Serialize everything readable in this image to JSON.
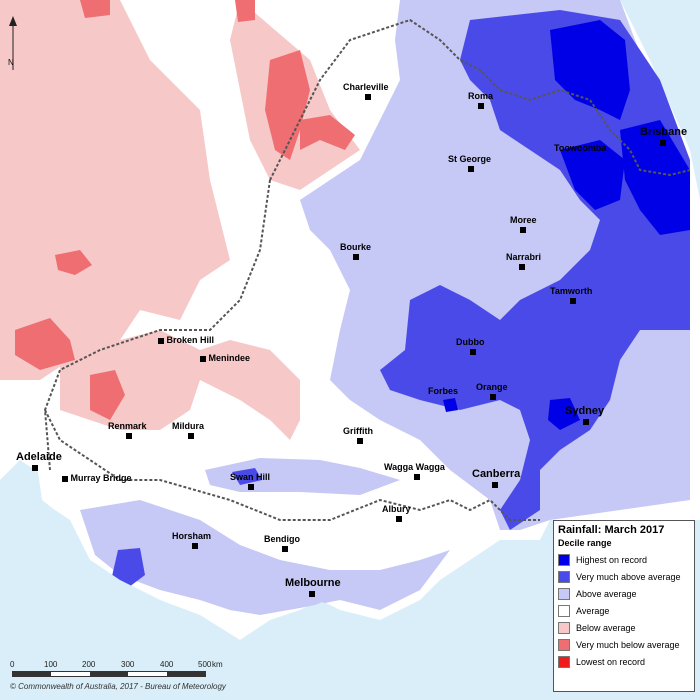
{
  "title": "Rainfall: March 2017",
  "subtitle": "Decile range",
  "legend": [
    {
      "label": "Highest on record",
      "color": "#0000e6"
    },
    {
      "label": "Very much above average",
      "color": "#4a4ae8"
    },
    {
      "label": "Above average",
      "color": "#c6c8f5"
    },
    {
      "label": "Average",
      "color": "#ffffff"
    },
    {
      "label": "Below average",
      "color": "#f6c8c8"
    },
    {
      "label": "Very much below average",
      "color": "#ee6e72"
    },
    {
      "label": "Lowest on record",
      "color": "#ee1c1c"
    }
  ],
  "cities": {
    "charleville": "Charleville",
    "roma": "Roma",
    "st_george": "St George",
    "toowoomba": "Toowoomba",
    "brisbane": "Brisbane",
    "moree": "Moree",
    "bourke": "Bourke",
    "narrabri": "Narrabri",
    "tamworth": "Tamworth",
    "broken_hill": "Broken Hill",
    "menindee": "Menindee",
    "dubbo": "Dubbo",
    "forbes": "Forbes",
    "orange": "Orange",
    "renmark": "Renmark",
    "mildura": "Mildura",
    "griffith": "Griffith",
    "sydney": "Sydney",
    "adelaide": "Adelaide",
    "murray_bridge": "Murray Bridge",
    "swan_hill": "Swan Hill",
    "wagga_wagga": "Wagga Wagga",
    "canberra": "Canberra",
    "albury": "Albury",
    "horsham": "Horsham",
    "bendigo": "Bendigo",
    "melbourne": "Melbourne"
  },
  "scale": {
    "ticks": [
      "0",
      "100",
      "200",
      "300",
      "400",
      "500"
    ],
    "unit": "km"
  },
  "north_label": "N",
  "credit": "© Commonwealth of Australia, 2017 - Bureau of Meteorology"
}
